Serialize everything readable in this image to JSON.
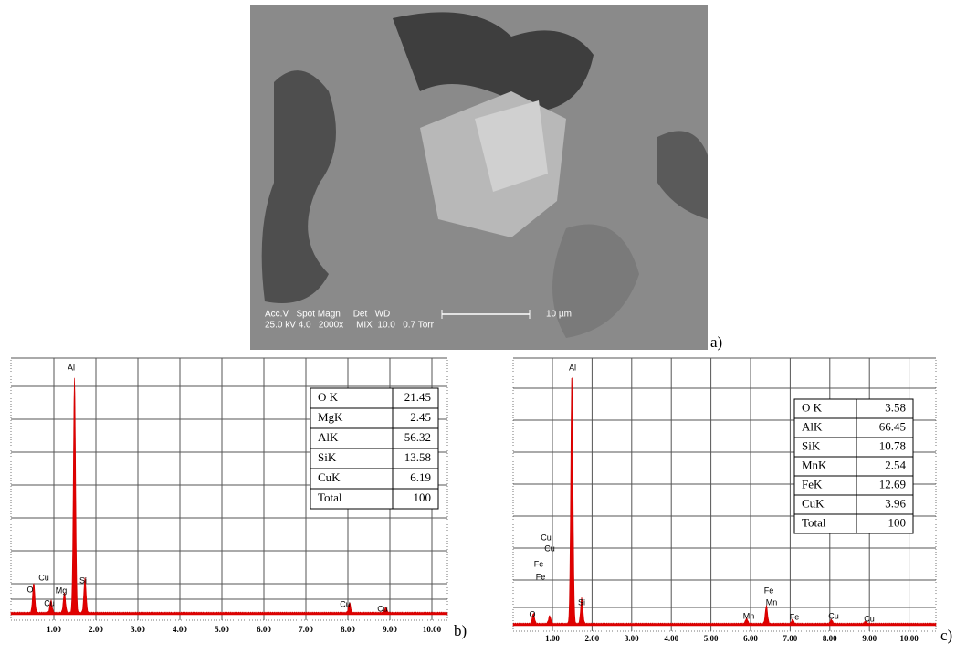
{
  "panels": [
    {
      "label": "a)",
      "caption_lines": [
        "Acc.V   Spot Magn     Det   WD",
        "25.0 kV 4.0   2000x     MIX  10.0   0.7 Torr"
      ],
      "scale_bar": "10 µm"
    },
    {
      "label": "b)",
      "x_ticks": [
        "1.00",
        "2.00",
        "3.00",
        "4.00",
        "5.00",
        "6.00",
        "7.00",
        "8.00",
        "9.00",
        "10.00"
      ],
      "peaks": [
        "Al",
        "Cu",
        "Cu",
        "Mg",
        "O",
        "Si",
        "Cu",
        "Cu"
      ],
      "table": {
        "rows": [
          [
            "O K",
            "21.45"
          ],
          [
            "MgK",
            "2.45"
          ],
          [
            "AlK",
            "56.32"
          ],
          [
            "SiK",
            "13.58"
          ],
          [
            "CuK",
            "6.19"
          ],
          [
            "Total",
            "100"
          ]
        ]
      }
    },
    {
      "label": "c)",
      "x_ticks": [
        "1.00",
        "2.00",
        "3.00",
        "4.00",
        "5.00",
        "6.00",
        "7.00",
        "8.00",
        "9.00",
        "10.00"
      ],
      "peaks": [
        "Al",
        "Cu",
        "Cu",
        "Fe",
        "Fe",
        "O",
        "Si",
        "Mn",
        "Fe",
        "Mn",
        "Fe",
        "Cu",
        "Cu"
      ],
      "table": {
        "rows": [
          [
            "O K",
            "3.58"
          ],
          [
            "AlK",
            "66.45"
          ],
          [
            "SiK",
            "10.78"
          ],
          [
            "MnK",
            "2.54"
          ],
          [
            "FeK",
            "12.69"
          ],
          [
            "CuK",
            "3.96"
          ],
          [
            "Total",
            "100"
          ]
        ]
      }
    }
  ]
}
